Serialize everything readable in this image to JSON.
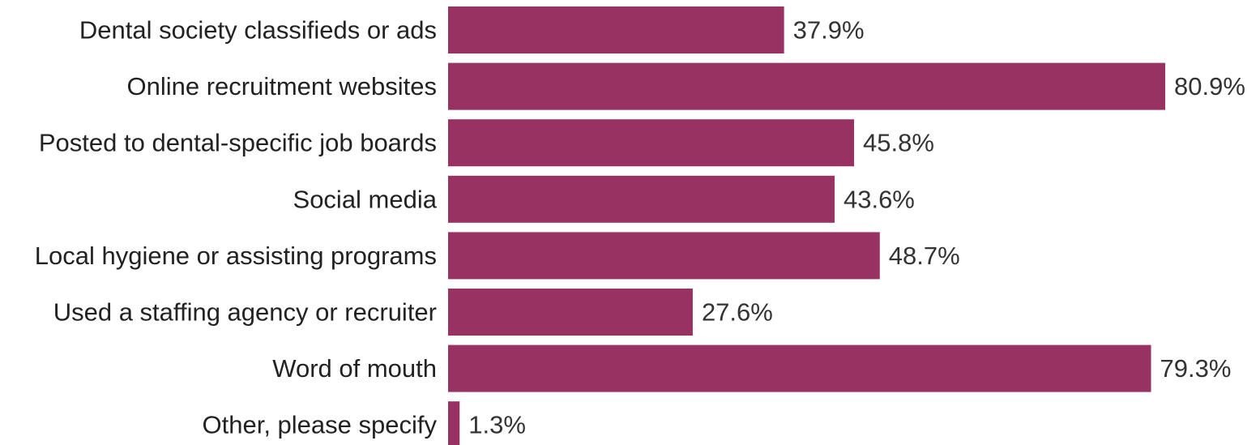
{
  "chart_data": {
    "type": "bar",
    "orientation": "horizontal",
    "categories": [
      "Dental society classifieds or ads",
      "Online recruitment websites",
      "Posted to dental-specific job boards",
      "Social media",
      "Local hygiene or assisting programs",
      "Used a staffing agency or recruiter",
      "Word of mouth",
      "Other, please specify"
    ],
    "values": [
      37.9,
      80.9,
      45.8,
      43.6,
      48.7,
      27.6,
      79.3,
      1.3
    ],
    "value_labels": [
      "37.9%",
      "80.9%",
      "45.8%",
      "43.6%",
      "48.7%",
      "27.6%",
      "79.3%",
      "1.3%"
    ],
    "unit": "%",
    "xlim": [
      0,
      100
    ],
    "grid": false,
    "legend": "none",
    "bar_color": "#983262"
  }
}
